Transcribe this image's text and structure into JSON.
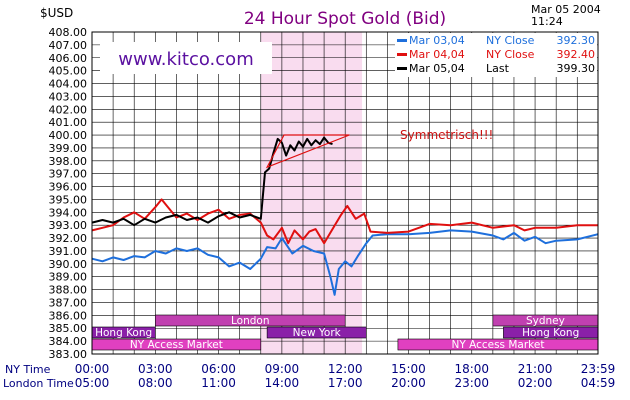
{
  "header": {
    "unit": "$USD",
    "title": "24 Hour Spot Gold (Bid)",
    "date": "Mar 05 2004",
    "time": "11:24",
    "watermark": "www.kitco.com"
  },
  "chart_data": {
    "type": "line",
    "title": "24 Hour Spot Gold (Bid)",
    "ylabel": "$USD",
    "ylim": [
      383.0,
      408.0
    ],
    "yticks": [
      "408.00",
      "407.00",
      "406.00",
      "405.00",
      "404.00",
      "403.00",
      "402.00",
      "401.00",
      "400.00",
      "399.00",
      "398.00",
      "397.00",
      "396.00",
      "395.00",
      "394.00",
      "393.00",
      "392.00",
      "391.00",
      "390.00",
      "389.00",
      "388.00",
      "387.00",
      "386.00",
      "385.00",
      "384.00",
      "383.00"
    ],
    "x_hours": [
      0,
      3,
      6,
      9,
      12,
      15,
      18,
      21,
      23.983
    ],
    "ny_labels": [
      "00:00",
      "03:00",
      "06:00",
      "09:00",
      "12:00",
      "15:00",
      "18:00",
      "21:00",
      "23:59"
    ],
    "london_labels": [
      "05:00",
      "08:00",
      "11:00",
      "14:00",
      "17:00",
      "20:00",
      "23:00",
      "02:00",
      "04:59"
    ],
    "ny_axis_label": "NY Time",
    "london_axis_label": "London Time",
    "grid": true,
    "legend_position": "top-right",
    "highlight_hours": [
      8,
      12.8
    ],
    "series": [
      {
        "name": "Mar 03,04",
        "legend": {
          "close_label": "NY Close",
          "close_value": "392.30"
        },
        "color": "#1e6fdc",
        "points": [
          [
            0,
            390.4
          ],
          [
            0.5,
            390.2
          ],
          [
            1,
            390.5
          ],
          [
            1.5,
            390.3
          ],
          [
            2,
            390.6
          ],
          [
            2.5,
            390.5
          ],
          [
            3,
            391.0
          ],
          [
            3.5,
            390.8
          ],
          [
            4,
            391.2
          ],
          [
            4.5,
            391.0
          ],
          [
            5,
            391.2
          ],
          [
            5.5,
            390.7
          ],
          [
            6,
            390.5
          ],
          [
            6.5,
            389.8
          ],
          [
            7,
            390.1
          ],
          [
            7.5,
            389.6
          ],
          [
            8,
            390.4
          ],
          [
            8.3,
            391.3
          ],
          [
            8.7,
            391.2
          ],
          [
            9,
            392.0
          ],
          [
            9.5,
            390.8
          ],
          [
            10,
            391.4
          ],
          [
            10.5,
            391.0
          ],
          [
            11,
            390.8
          ],
          [
            11.3,
            389.0
          ],
          [
            11.5,
            387.6
          ],
          [
            11.7,
            389.6
          ],
          [
            12,
            390.2
          ],
          [
            12.3,
            389.8
          ],
          [
            12.6,
            390.6
          ],
          [
            13,
            391.6
          ],
          [
            13.3,
            392.2
          ],
          [
            14,
            392.3
          ],
          [
            15,
            392.3
          ],
          [
            16,
            392.4
          ],
          [
            17,
            392.6
          ],
          [
            18,
            392.5
          ],
          [
            19,
            392.2
          ],
          [
            19.5,
            391.9
          ],
          [
            20,
            392.4
          ],
          [
            20.5,
            391.8
          ],
          [
            21,
            392.1
          ],
          [
            21.5,
            391.6
          ],
          [
            22,
            391.8
          ],
          [
            23,
            391.9
          ],
          [
            23.983,
            392.3
          ]
        ]
      },
      {
        "name": "Mar 04,04",
        "legend": {
          "close_label": "NY Close",
          "close_value": "392.40"
        },
        "color": "#e01010",
        "points": [
          [
            0,
            392.6
          ],
          [
            0.5,
            392.8
          ],
          [
            1,
            393.0
          ],
          [
            1.5,
            393.6
          ],
          [
            2,
            394.0
          ],
          [
            2.5,
            393.5
          ],
          [
            3,
            394.4
          ],
          [
            3.3,
            395.0
          ],
          [
            3.6,
            394.4
          ],
          [
            4,
            393.6
          ],
          [
            4.5,
            393.9
          ],
          [
            5,
            393.4
          ],
          [
            5.5,
            393.9
          ],
          [
            6,
            394.2
          ],
          [
            6.5,
            393.5
          ],
          [
            7,
            393.8
          ],
          [
            7.5,
            393.9
          ],
          [
            8,
            393.2
          ],
          [
            8.3,
            392.2
          ],
          [
            8.6,
            391.9
          ],
          [
            9,
            392.8
          ],
          [
            9.3,
            391.6
          ],
          [
            9.6,
            392.6
          ],
          [
            10,
            391.9
          ],
          [
            10.3,
            392.5
          ],
          [
            10.6,
            392.7
          ],
          [
            11,
            391.6
          ],
          [
            11.4,
            392.7
          ],
          [
            11.8,
            393.8
          ],
          [
            12.1,
            394.5
          ],
          [
            12.5,
            393.5
          ],
          [
            12.9,
            393.9
          ],
          [
            13.2,
            392.5
          ],
          [
            14,
            392.4
          ],
          [
            15,
            392.5
          ],
          [
            16,
            393.1
          ],
          [
            17,
            393.0
          ],
          [
            18,
            393.2
          ],
          [
            19,
            392.8
          ],
          [
            20,
            393.0
          ],
          [
            20.5,
            392.6
          ],
          [
            21,
            392.8
          ],
          [
            22,
            392.8
          ],
          [
            23,
            393.0
          ],
          [
            23.983,
            393.0
          ]
        ]
      },
      {
        "name": "Mar 05,04",
        "legend": {
          "close_label": "Last",
          "close_value": "399.30"
        },
        "color": "#000000",
        "points": [
          [
            0,
            393.2
          ],
          [
            0.5,
            393.4
          ],
          [
            1,
            393.2
          ],
          [
            1.5,
            393.5
          ],
          [
            2,
            393.0
          ],
          [
            2.5,
            393.5
          ],
          [
            3,
            393.2
          ],
          [
            3.5,
            393.6
          ],
          [
            4,
            393.8
          ],
          [
            4.5,
            393.4
          ],
          [
            5,
            393.6
          ],
          [
            5.5,
            393.2
          ],
          [
            6,
            393.7
          ],
          [
            6.5,
            394.0
          ],
          [
            7,
            393.6
          ],
          [
            7.5,
            393.8
          ],
          [
            8,
            393.5
          ],
          [
            8.2,
            397.1
          ],
          [
            8.4,
            397.4
          ],
          [
            8.6,
            398.6
          ],
          [
            8.8,
            399.7
          ],
          [
            9,
            399.4
          ],
          [
            9.2,
            398.4
          ],
          [
            9.4,
            399.2
          ],
          [
            9.6,
            398.8
          ],
          [
            9.8,
            399.5
          ],
          [
            10,
            399.1
          ],
          [
            10.2,
            399.7
          ],
          [
            10.4,
            399.2
          ],
          [
            10.6,
            399.6
          ],
          [
            10.8,
            399.3
          ],
          [
            11,
            399.8
          ],
          [
            11.2,
            399.4
          ],
          [
            11.4,
            399.3
          ]
        ]
      }
    ],
    "annotations": [
      {
        "type": "triangle",
        "color": "#e01010",
        "points": [
          [
            8.3,
            397.5
          ],
          [
            12.2,
            400.0
          ],
          [
            9.1,
            400.0
          ]
        ]
      },
      {
        "type": "text",
        "text": "Symmetrisch!!!",
        "x": 14.6,
        "y": 399.7,
        "color": "#cc1010"
      }
    ],
    "sessions": [
      {
        "label": "London",
        "start": 3.0,
        "end": 12.0,
        "row": 0,
        "color": "#c040b0"
      },
      {
        "label": "Sydney",
        "start": 19.0,
        "end": 23.983,
        "row": 0,
        "color": "#c040b0"
      },
      {
        "label": "Hong Kong",
        "start": 0.0,
        "end": 3.0,
        "row": 1,
        "color": "#8a20a8"
      },
      {
        "label": "New York",
        "start": 8.3,
        "end": 13.0,
        "row": 1,
        "color": "#8a20a8"
      },
      {
        "label": "Hong Kong",
        "start": 19.5,
        "end": 23.983,
        "row": 1,
        "color": "#8a20a8"
      },
      {
        "label": "NY Access Market",
        "start": 0.0,
        "end": 8.0,
        "row": 2,
        "color": "#e040c0"
      },
      {
        "label": "NY Access Market",
        "start": 14.5,
        "end": 23.983,
        "row": 2,
        "color": "#e040c0"
      }
    ]
  }
}
